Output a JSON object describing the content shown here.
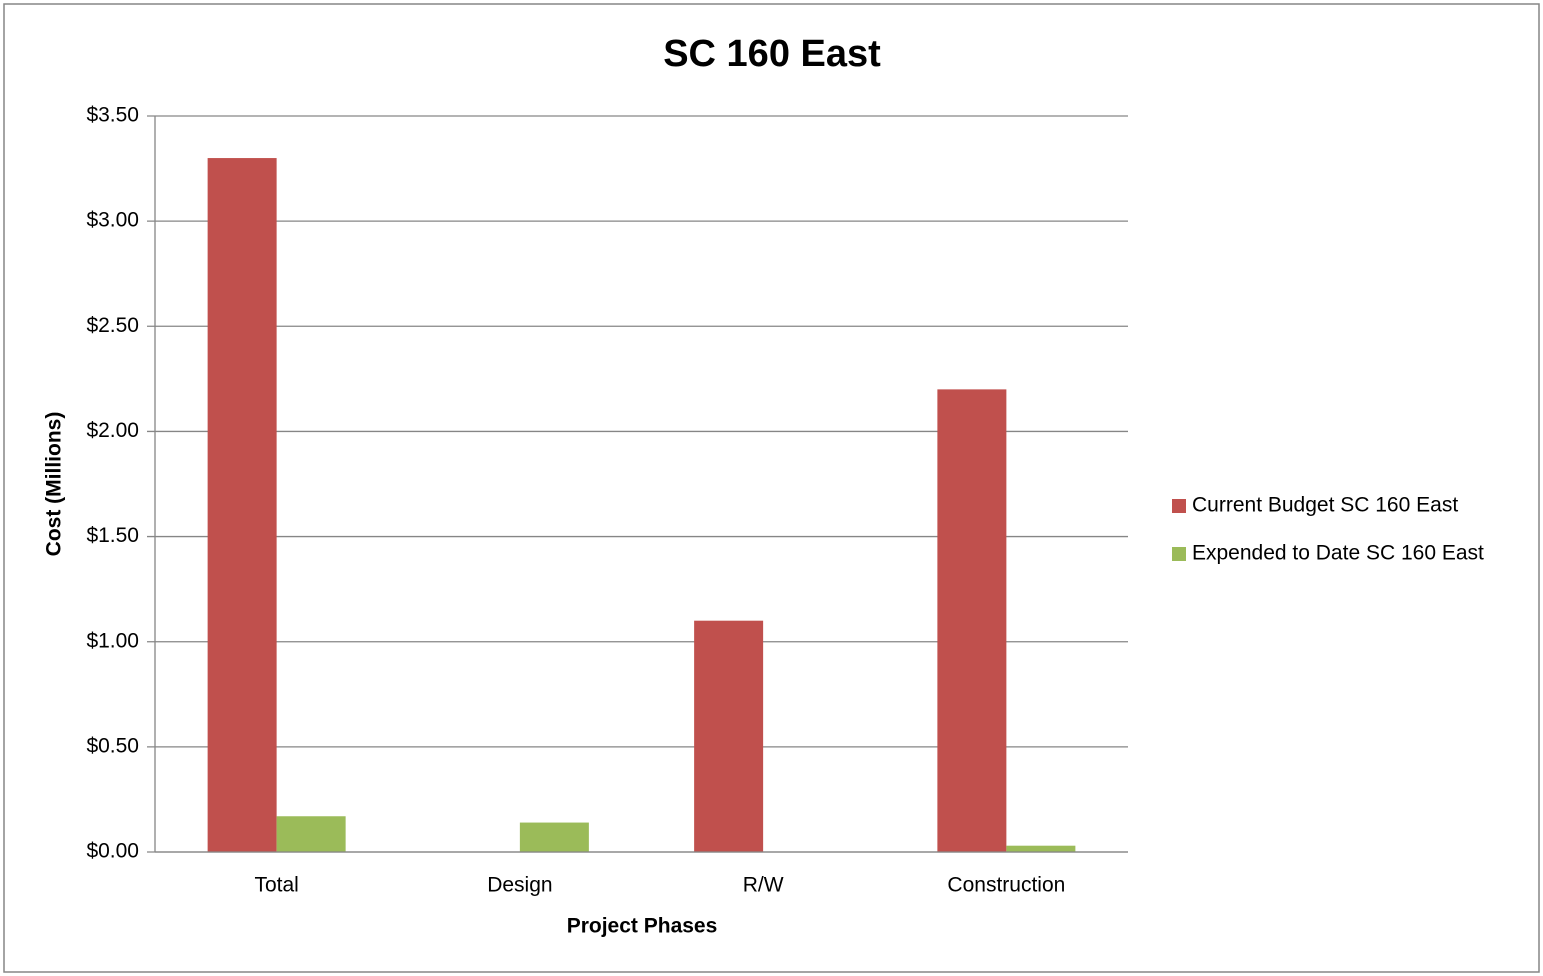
{
  "chart_data": {
    "type": "bar",
    "title": "SC 160 East",
    "x_label": "Project Phases",
    "y_label": "Cost (Millions)",
    "categories": [
      "Total",
      "Design",
      "R/W",
      "Construction"
    ],
    "series": [
      {
        "name": "Current Budget SC 160 East",
        "color": "#c0504d",
        "values": [
          3.3,
          0,
          1.1,
          2.2
        ]
      },
      {
        "name": "Expended to Date SC 160 East",
        "color": "#9bbb59",
        "values": [
          0.17,
          0.14,
          0,
          0.03
        ]
      }
    ],
    "ylim": [
      0,
      3.5
    ],
    "yticks": [
      {
        "value": 0,
        "label": "$0.00"
      },
      {
        "value": 0.5,
        "label": "$0.50"
      },
      {
        "value": 1,
        "label": "$1.00"
      },
      {
        "value": 1.5,
        "label": "$1.50"
      },
      {
        "value": 2,
        "label": "$2.00"
      },
      {
        "value": 2.5,
        "label": "$2.50"
      },
      {
        "value": 3,
        "label": "$3.00"
      },
      {
        "value": 3.5,
        "label": "$3.50"
      }
    ],
    "grid": true,
    "legend": "right"
  }
}
